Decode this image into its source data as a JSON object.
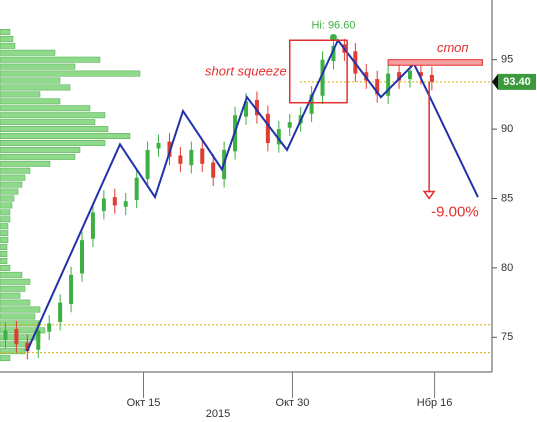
{
  "chart_data": {
    "type": "candlestick",
    "x_axis_label": "2015",
    "xlim": [
      0,
      36
    ],
    "xticks": [
      {
        "value": 10.5,
        "label": "Окт 15"
      },
      {
        "value": 21.4,
        "label": "Окт 30"
      },
      {
        "value": 31.8,
        "label": "Нбр 16"
      }
    ],
    "ylim": [
      72.5,
      99.3
    ],
    "yticks": [
      75,
      80,
      85,
      90,
      95
    ],
    "up_color": "#3cb043",
    "down_color": "#e03c31",
    "x": [
      0.4,
      1.2,
      2,
      2.8,
      3.6,
      4.4,
      5.2,
      6,
      6.8,
      7.6,
      8.4,
      9.2,
      10,
      10.8,
      11.6,
      12.4,
      13.2,
      14,
      14.8,
      15.6,
      16.4,
      17.2,
      18,
      18.8,
      19.6,
      20.4,
      21.2,
      22,
      22.8,
      23.6,
      24.4,
      25.2,
      26,
      26.8,
      27.6,
      28.4,
      29.2,
      30,
      30.8,
      31.6
    ],
    "open": [
      74.8,
      75.6,
      74.6,
      74.1,
      75.4,
      76.1,
      77.4,
      79.6,
      82.1,
      84.1,
      85.1,
      84.4,
      84.9,
      86.4,
      88.6,
      89.1,
      88.1,
      87.4,
      88.6,
      87.6,
      86.4,
      88.4,
      90.9,
      92.1,
      91.1,
      88.9,
      90.1,
      90.4,
      91.1,
      92.4,
      94.9,
      96.1,
      95.6,
      94.1,
      93.6,
      92.4,
      94.1,
      93.6,
      94.1,
      93.9
    ],
    "high": [
      76.1,
      76.2,
      75.2,
      76.1,
      76.6,
      78.1,
      80.1,
      82.6,
      84.6,
      85.6,
      85.7,
      85.4,
      87.1,
      89.1,
      89.6,
      89.7,
      88.7,
      89.1,
      89.2,
      88.2,
      89.1,
      91.6,
      92.6,
      92.7,
      91.7,
      90.6,
      91.1,
      91.6,
      93.1,
      95.6,
      96.6,
      96.5,
      96.2,
      94.7,
      94.2,
      94.6,
      94.7,
      94.8,
      94.7,
      94.5
    ],
    "low": [
      74.2,
      73.9,
      73.4,
      73.5,
      74.8,
      75.5,
      76.8,
      79.0,
      81.5,
      83.5,
      83.9,
      83.8,
      84.3,
      85.8,
      88.0,
      87.4,
      86.9,
      86.8,
      86.9,
      85.9,
      85.8,
      87.8,
      90.3,
      90.4,
      88.4,
      88.3,
      89.5,
      89.8,
      90.5,
      91.8,
      94.3,
      94.9,
      93.4,
      92.9,
      91.9,
      91.8,
      92.9,
      93.0,
      93.2,
      92.8
    ],
    "close": [
      75.5,
      74.5,
      74,
      75.5,
      76,
      77.5,
      79.5,
      82,
      84,
      85,
      84.5,
      84.8,
      86.5,
      88.5,
      89,
      88,
      87.5,
      88.5,
      87.5,
      86.5,
      88.5,
      91,
      92,
      91,
      89,
      90,
      90.5,
      91,
      92.5,
      95,
      96,
      95.5,
      94,
      93.5,
      92.5,
      94,
      93.5,
      94.2,
      93.8,
      93.4
    ],
    "volume_profile": {
      "color": "#8fd98a",
      "prices": [
        97,
        96.5,
        96,
        95.5,
        95,
        94.5,
        94,
        93.5,
        93,
        92.5,
        92,
        91.5,
        91,
        90.5,
        90,
        89.5,
        89,
        88.5,
        88,
        87.5,
        87,
        86.5,
        86,
        85.5,
        85,
        84.5,
        84,
        83.5,
        83,
        82.5,
        82,
        81.5,
        81,
        80.5,
        80,
        79.5,
        79,
        78.5,
        78,
        77.5,
        77,
        76.5,
        76,
        75.5,
        75,
        74.5,
        74,
        73.5
      ],
      "values": [
        10,
        13,
        15,
        55,
        100,
        75,
        140,
        60,
        70,
        40,
        60,
        90,
        105,
        95,
        108,
        130,
        105,
        80,
        75,
        50,
        30,
        25,
        22,
        18,
        14,
        12,
        10,
        10,
        8,
        8,
        8,
        7,
        7,
        7,
        10,
        22,
        30,
        25,
        20,
        30,
        40,
        35,
        40,
        45,
        40,
        30,
        25,
        10
      ]
    },
    "zigzag": {
      "color": "#2233aa",
      "x": [
        1.98,
        8.78,
        11.34,
        13.39,
        16.24,
        18.07,
        21.0,
        24.73,
        27.87,
        30.29,
        34.97
      ],
      "y": [
        74.0,
        88.9,
        85.1,
        91.3,
        87.1,
        92.3,
        88.5,
        96.4,
        92.3,
        94.7,
        85.1
      ]
    },
    "high_mark": {
      "x": 24.4,
      "value": 96.6,
      "label": "Hi: 96.60"
    },
    "squeeze": {
      "label": "short squeeze",
      "x": [
        21.2,
        25.4
      ],
      "low": 91.9,
      "high": 96.4
    },
    "stop": {
      "label": "стоп",
      "x": [
        28.4,
        35.3
      ],
      "low": 94.6,
      "high": 95.0
    },
    "last_price": {
      "value": 93.4,
      "label": "93.40"
    },
    "target": {
      "x": 31.4,
      "from": 93.4,
      "to": 85.0,
      "value": -9,
      "label": "-9.00%"
    },
    "levels": [
      75.9,
      73.9
    ]
  }
}
